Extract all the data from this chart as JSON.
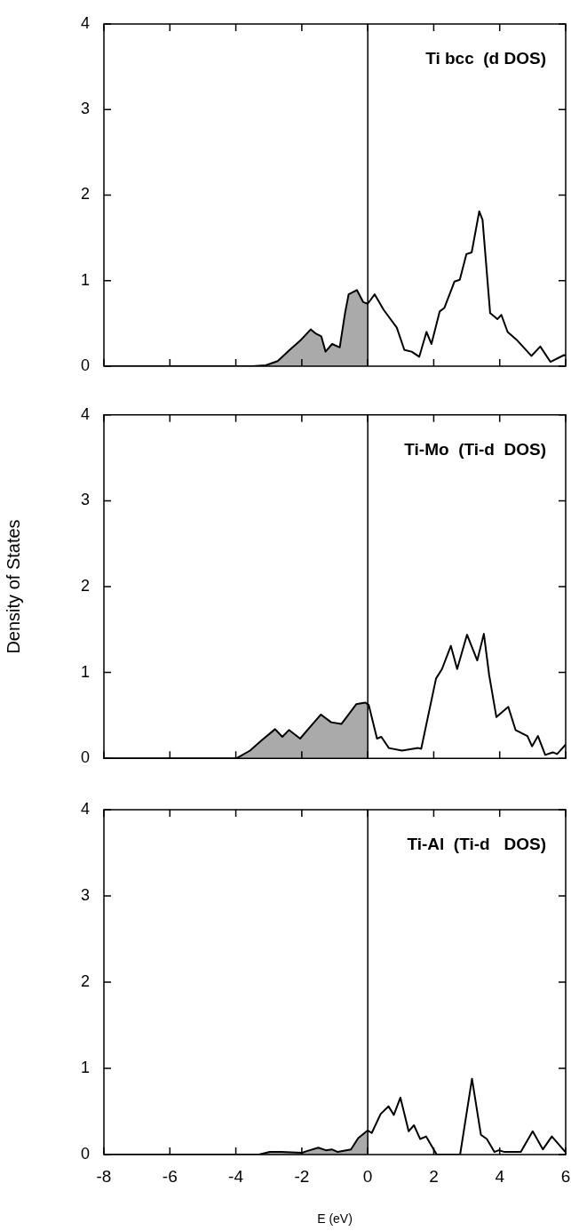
{
  "chart_data": [
    {
      "type": "line",
      "title": "Ti bcc  (d DOS)",
      "xlim": [
        -8,
        6
      ],
      "xticks": [
        -8,
        -6,
        -4,
        -2,
        0,
        2,
        4,
        6
      ],
      "ylim": [
        0,
        4
      ],
      "yticks": [
        0,
        1,
        2,
        3,
        4
      ],
      "tick_labels": "y",
      "ref_lines": [
        {
          "axis": "x",
          "value": 0,
          "color": "#000000"
        }
      ],
      "series": [
        {
          "type": "area",
          "color": "#000000",
          "x": [
            -8,
            -3.5,
            -3.09,
            -2.73,
            -2.37,
            -2.02,
            -1.73,
            -1.57,
            -1.41,
            -1.28,
            -1.08,
            -0.85,
            -0.69,
            -0.58,
            -0.33,
            -0.14,
            0
          ],
          "values": [
            0,
            0,
            0.01,
            0.06,
            0.19,
            0.31,
            0.43,
            0.38,
            0.35,
            0.17,
            0.26,
            0.22,
            0.62,
            0.84,
            0.89,
            0.75,
            0.73
          ]
        },
        {
          "type": "line",
          "color": "#000000",
          "x": [
            0,
            0.21,
            0.48,
            0.88,
            1.11,
            1.33,
            1.56,
            1.78,
            1.93,
            2.18,
            2.32,
            2.63,
            2.79,
            2.99,
            3.15,
            3.38,
            3.48,
            3.71,
            3.93,
            4.05,
            4.24,
            4.51,
            4.96,
            5.23,
            5.54,
            5.95,
            6
          ],
          "values": [
            0.73,
            0.84,
            0.66,
            0.45,
            0.19,
            0.17,
            0.11,
            0.4,
            0.26,
            0.64,
            0.68,
            0.99,
            1.01,
            1.31,
            1.33,
            1.81,
            1.71,
            0.62,
            0.55,
            0.6,
            0.4,
            0.31,
            0.12,
            0.23,
            0.05,
            0.13,
            0.12
          ]
        }
      ]
    },
    {
      "type": "line",
      "title": "Ti-Mo  (Ti-d  DOS)",
      "ylabel": "Density of States",
      "xlim": [
        -8,
        6
      ],
      "xticks": [
        -8,
        -6,
        -4,
        -2,
        0,
        2,
        4,
        6
      ],
      "ylim": [
        0,
        4
      ],
      "yticks": [
        0,
        1,
        2,
        3,
        4
      ],
      "tick_labels": "y",
      "ref_lines": [
        {
          "axis": "x",
          "value": 0,
          "color": "#000000"
        }
      ],
      "series": [
        {
          "type": "area",
          "color": "#000000",
          "x": [
            -8,
            -3.98,
            -3.57,
            -3.22,
            -2.81,
            -2.59,
            -2.39,
            -2.05,
            -1.83,
            -1.42,
            -1.11,
            -0.8,
            -0.35,
            -0.08,
            0
          ],
          "values": [
            0,
            0,
            0.09,
            0.21,
            0.34,
            0.25,
            0.33,
            0.23,
            0.33,
            0.51,
            0.42,
            0.4,
            0.63,
            0.65,
            0.63
          ]
        },
        {
          "type": "line",
          "color": "#000000",
          "x": [
            0,
            0.03,
            0.28,
            0.41,
            0.64,
            1.04,
            1.53,
            1.62,
            2.07,
            2.25,
            2.52,
            2.71,
            3.01,
            3.32,
            3.52,
            3.68,
            3.9,
            4.26,
            4.48,
            4.84,
            4.98,
            5.16,
            5.38,
            5.61,
            5.74,
            6
          ],
          "values": [
            0.63,
            0.62,
            0.23,
            0.25,
            0.12,
            0.09,
            0.12,
            0.11,
            0.93,
            1.04,
            1.31,
            1.04,
            1.44,
            1.14,
            1.45,
            0.97,
            0.48,
            0.6,
            0.33,
            0.26,
            0.14,
            0.26,
            0.04,
            0.07,
            0.05,
            0.16
          ]
        }
      ]
    },
    {
      "type": "line",
      "title": "Ti-Al  (Ti-d   DOS)",
      "xlabel": "E (eV)",
      "xlim": [
        -8,
        6
      ],
      "xticks": [
        -8,
        -6,
        -4,
        -2,
        0,
        2,
        4,
        6
      ],
      "ylim": [
        0,
        4
      ],
      "yticks": [
        0,
        1,
        2,
        3,
        4
      ],
      "ref_lines": [
        {
          "axis": "x",
          "value": 0,
          "color": "#000000"
        }
      ],
      "series": [
        {
          "type": "area",
          "color": "#000000",
          "x": [
            -8,
            -3.3,
            -2.97,
            -2.62,
            -1.99,
            -1.85,
            -1.5,
            -1.27,
            -1.09,
            -0.91,
            -0.51,
            -0.29,
            0
          ],
          "values": [
            0,
            0,
            0.03,
            0.03,
            0.02,
            0.04,
            0.08,
            0.05,
            0.06,
            0.03,
            0.06,
            0.19,
            0.28
          ]
        },
        {
          "type": "line",
          "color": "#000000",
          "x": [
            0,
            0.12,
            0.39,
            0.63,
            0.79,
            0.99,
            1.24,
            1.4,
            1.59,
            1.77,
            2.09,
            2.8,
            3.16,
            3.43,
            3.61,
            3.84,
            3.97,
            4.15,
            4.64,
            5,
            5.31,
            5.58,
            5.99,
            6
          ],
          "values": [
            0.28,
            0.25,
            0.47,
            0.56,
            0.46,
            0.66,
            0.27,
            0.34,
            0.18,
            0.21,
            0,
            0,
            0.88,
            0.23,
            0.18,
            0.03,
            0.05,
            0.03,
            0.03,
            0.27,
            0.06,
            0.21,
            0.03,
            0.05
          ]
        }
      ]
    }
  ]
}
